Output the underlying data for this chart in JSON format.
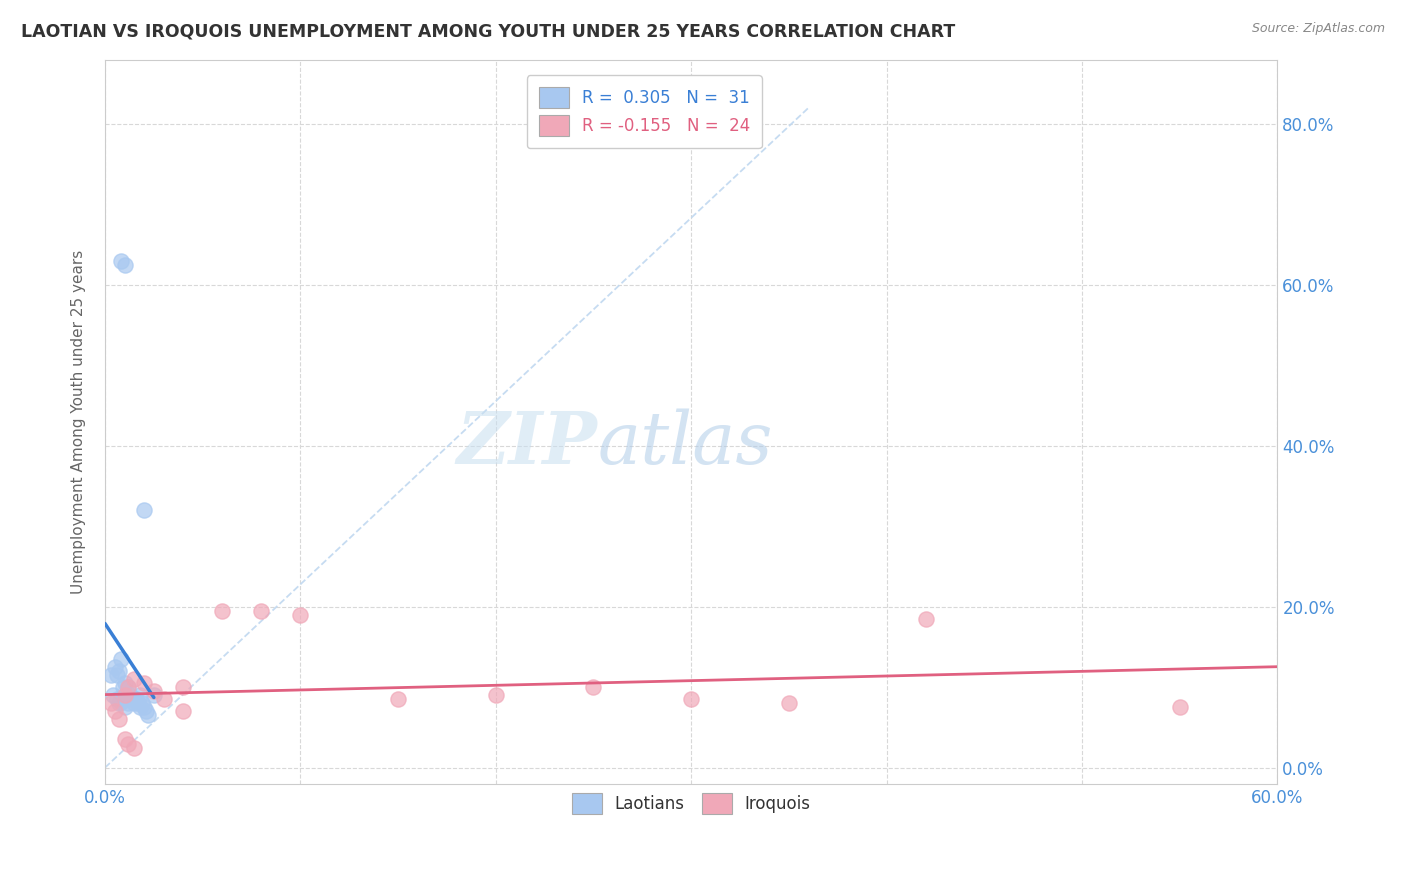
{
  "title": "LAOTIAN VS IROQUOIS UNEMPLOYMENT AMONG YOUTH UNDER 25 YEARS CORRELATION CHART",
  "source": "Source: ZipAtlas.com",
  "xmin": 0.0,
  "xmax": 0.6,
  "ymin": -0.02,
  "ymax": 0.88,
  "laotian_x": [
    0.003,
    0.005,
    0.006,
    0.007,
    0.008,
    0.009,
    0.01,
    0.011,
    0.012,
    0.013,
    0.014,
    0.015,
    0.016,
    0.017,
    0.018,
    0.019,
    0.02,
    0.021,
    0.022,
    0.008,
    0.01,
    0.012,
    0.015,
    0.018,
    0.02,
    0.006,
    0.008,
    0.004,
    0.007,
    0.025,
    0.01
  ],
  "laotian_y": [
    0.115,
    0.125,
    0.115,
    0.12,
    0.135,
    0.1,
    0.105,
    0.09,
    0.1,
    0.09,
    0.085,
    0.08,
    0.085,
    0.08,
    0.075,
    0.08,
    0.075,
    0.07,
    0.065,
    0.63,
    0.625,
    0.08,
    0.085,
    0.09,
    0.32,
    0.085,
    0.082,
    0.09,
    0.08,
    0.09,
    0.075
  ],
  "iroquois_x": [
    0.003,
    0.005,
    0.007,
    0.01,
    0.012,
    0.015,
    0.02,
    0.025,
    0.03,
    0.04,
    0.06,
    0.08,
    0.1,
    0.15,
    0.2,
    0.25,
    0.3,
    0.35,
    0.42,
    0.55,
    0.01,
    0.012,
    0.015,
    0.04
  ],
  "iroquois_y": [
    0.08,
    0.07,
    0.06,
    0.09,
    0.1,
    0.11,
    0.105,
    0.095,
    0.085,
    0.1,
    0.195,
    0.195,
    0.19,
    0.085,
    0.09,
    0.1,
    0.085,
    0.08,
    0.185,
    0.075,
    0.035,
    0.03,
    0.025,
    0.07
  ],
  "laotian_color": "#a8c8f0",
  "iroquois_color": "#f0a8b8",
  "laotian_trend_color": "#3a7fd5",
  "iroquois_trend_color": "#e06080",
  "diagonal_color": "#c0d8f0",
  "legend_laotian_label": "R =  0.305   N =  31",
  "legend_iroquois_label": "R = -0.155   N =  24",
  "legend_box_laotian": "#a8c8f0",
  "legend_box_iroquois": "#f0a8b8",
  "bottom_legend_laotian": "Laotians",
  "bottom_legend_iroquois": "Iroquois",
  "watermark_zip": "ZIP",
  "watermark_atlas": "atlas",
  "watermark_color_zip": "#c8dff0",
  "watermark_color_atlas": "#b0cce8",
  "background_color": "#ffffff",
  "grid_color": "#d8d8d8",
  "right_ytick_color": "#4a90d9",
  "title_color": "#333333",
  "source_color": "#888888"
}
